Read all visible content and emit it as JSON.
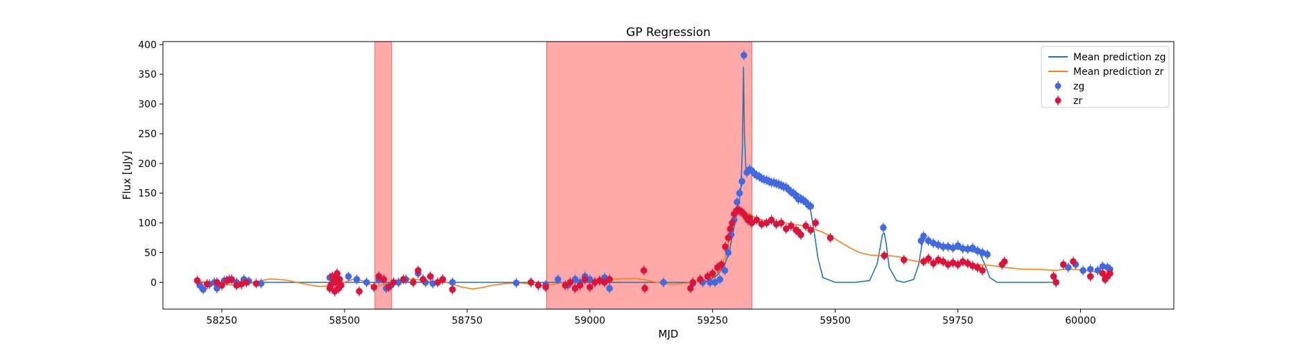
{
  "chart_data": {
    "type": "scatter",
    "title": "GP Regression",
    "xlabel": "MJD",
    "ylabel": "Flux [uJy]",
    "xlim": [
      58130,
      60190
    ],
    "ylim": [
      -45,
      405
    ],
    "xticks": [
      58250,
      58500,
      58750,
      59000,
      59250,
      59500,
      59750,
      60000
    ],
    "yticks": [
      0,
      50,
      100,
      150,
      200,
      250,
      300,
      350,
      400
    ],
    "grid": false,
    "legend_position": "top-right",
    "shaded_regions": [
      {
        "x0": 58562,
        "x1": 58596,
        "color": "#ff9a9a"
      },
      {
        "x0": 58912,
        "x1": 59330,
        "color": "#ff9a9a"
      }
    ],
    "series": [
      {
        "name": "Mean prediction zg",
        "kind": "line",
        "color": "#1f77b4",
        "x": [
          58200,
          58250,
          58300,
          58350,
          58400,
          58470,
          58520,
          58550,
          58600,
          58650,
          58700,
          58750,
          58800,
          58850,
          58900,
          58950,
          59000,
          59050,
          59100,
          59150,
          59200,
          59240,
          59260,
          59275,
          59285,
          59292,
          59298,
          59304,
          59308,
          59311,
          59313,
          59315,
          59318,
          59322,
          59330,
          59340,
          59360,
          59380,
          59400,
          59420,
          59440,
          59450,
          59458,
          59465,
          59475,
          59500,
          59540,
          59570,
          59585,
          59592,
          59596,
          59600,
          59604,
          59610,
          59625,
          59640,
          59660,
          59670,
          59676,
          59680,
          59690,
          59700,
          59720,
          59740,
          59760,
          59780,
          59795,
          59805,
          59815,
          59830,
          59850,
          59900,
          59950
        ],
        "y": [
          0,
          0,
          0,
          0,
          0,
          0,
          0,
          0,
          0,
          0,
          0,
          0,
          0,
          0,
          0,
          0,
          0,
          0,
          0,
          0,
          0,
          2,
          12,
          30,
          55,
          85,
          110,
          135,
          160,
          230,
          362,
          250,
          190,
          186,
          188,
          182,
          175,
          168,
          162,
          152,
          140,
          120,
          80,
          40,
          8,
          0,
          0,
          3,
          30,
          60,
          80,
          83,
          65,
          25,
          3,
          0,
          5,
          30,
          60,
          72,
          68,
          63,
          60,
          57,
          55,
          52,
          48,
          30,
          8,
          0,
          0,
          0,
          0
        ]
      },
      {
        "name": "Mean prediction zr",
        "kind": "line",
        "color": "#ff7f0e",
        "x": [
          58200,
          58225,
          58250,
          58275,
          58300,
          58325,
          58350,
          58380,
          58420,
          58450,
          58480,
          58500,
          58520,
          58540,
          58560,
          58580,
          58610,
          58640,
          58660,
          58680,
          58700,
          58720,
          58740,
          58760,
          58780,
          58800,
          58830,
          58860,
          58880,
          58900,
          58920,
          58940,
          58960,
          58980,
          59000,
          59030,
          59060,
          59090,
          59110,
          59130,
          59150,
          59170,
          59190,
          59210,
          59230,
          59250,
          59265,
          59275,
          59285,
          59292,
          59298,
          59305,
          59312,
          59320,
          59335,
          59350,
          59370,
          59390,
          59410,
          59430,
          59450,
          59470,
          59490,
          59510,
          59530,
          59550,
          59570,
          59590,
          59610,
          59630,
          59650,
          59670,
          59690,
          59710,
          59730,
          59750,
          59770,
          59790,
          59810,
          59830,
          59850,
          59870,
          59890,
          59910,
          59930,
          59950,
          59970,
          59990,
          60010,
          60030,
          60060
        ],
        "y": [
          2,
          0,
          -3,
          -5,
          -3,
          2,
          6,
          4,
          -3,
          -7,
          -5,
          0,
          6,
          2,
          -7,
          -4,
          4,
          6,
          3,
          0,
          2,
          -3,
          -8,
          -11,
          -9,
          -5,
          -2,
          -1,
          -3,
          -6,
          -4,
          -1,
          0,
          1,
          2,
          4,
          6,
          7,
          5,
          1,
          -2,
          -3,
          -2,
          0,
          3,
          8,
          20,
          40,
          70,
          95,
          112,
          118,
          120,
          117,
          110,
          105,
          103,
          101,
          99,
          96,
          92,
          86,
          78,
          68,
          58,
          50,
          46,
          45,
          45,
          43,
          38,
          35,
          33,
          32,
          31,
          31,
          30,
          30,
          29,
          27,
          25,
          23,
          22,
          22,
          21,
          20,
          22,
          22,
          20,
          18,
          18
        ]
      },
      {
        "name": "zg",
        "kind": "errorbar",
        "color": "#4169e1",
        "x": [
          58205,
          58212,
          58225,
          58235,
          58240,
          58255,
          58265,
          58280,
          58295,
          58305,
          58330,
          58470,
          58480,
          58490,
          58508,
          58525,
          58545,
          58570,
          58585,
          58595,
          58610,
          58625,
          58650,
          58665,
          58680,
          58700,
          58720,
          58850,
          58880,
          58910,
          58935,
          58955,
          58970,
          58980,
          58990,
          59000,
          59010,
          59020,
          59030,
          59040,
          59150,
          59210,
          59230,
          59245,
          59255,
          59265,
          59275,
          59282,
          59288,
          59294,
          59300,
          59305,
          59310,
          59314,
          59320,
          59325,
          59330,
          59335,
          59340,
          59345,
          59350,
          59355,
          59360,
          59365,
          59370,
          59375,
          59380,
          59385,
          59390,
          59395,
          59400,
          59405,
          59410,
          59415,
          59420,
          59425,
          59430,
          59435,
          59440,
          59445,
          59450,
          59598,
          59675,
          59680,
          59690,
          59700,
          59710,
          59720,
          59730,
          59740,
          59750,
          59760,
          59770,
          59780,
          59790,
          59800,
          59810,
          59975,
          59990,
          60005,
          60020,
          60035,
          60045,
          60055,
          60060
        ],
        "y": [
          -5,
          -12,
          -3,
          0,
          -10,
          3,
          5,
          0,
          5,
          2,
          -2,
          8,
          10,
          5,
          10,
          5,
          0,
          5,
          -10,
          -5,
          0,
          5,
          15,
          0,
          -2,
          5,
          0,
          -1,
          0,
          -4,
          5,
          -5,
          5,
          0,
          10,
          5,
          0,
          3,
          8,
          -10,
          0,
          -2,
          0,
          0,
          0,
          5,
          20,
          50,
          80,
          105,
          135,
          150,
          170,
          382,
          185,
          190,
          188,
          183,
          180,
          178,
          175,
          173,
          172,
          170,
          168,
          168,
          166,
          165,
          163,
          161,
          160,
          156,
          152,
          150,
          145,
          140,
          140,
          138,
          135,
          130,
          128,
          92,
          70,
          78,
          70,
          66,
          63,
          60,
          60,
          58,
          62,
          57,
          56,
          58,
          53,
          50,
          47,
          25,
          30,
          20,
          22,
          20,
          27,
          25,
          22
        ]
      },
      {
        "name": "zr",
        "kind": "errorbar",
        "color": "#dc143c",
        "x": [
          58200,
          58220,
          58240,
          58250,
          58260,
          58270,
          58280,
          58290,
          58300,
          58320,
          58470,
          58472,
          58475,
          58478,
          58480,
          58482,
          58485,
          58488,
          58490,
          58493,
          58530,
          58560,
          58570,
          58580,
          58590,
          58600,
          58620,
          58640,
          58650,
          58660,
          58675,
          58690,
          58700,
          58720,
          58880,
          58895,
          58910,
          58950,
          58960,
          58970,
          58980,
          58990,
          59000,
          59010,
          59020,
          59030,
          59040,
          59110,
          59112,
          59205,
          59210,
          59225,
          59240,
          59250,
          59260,
          59268,
          59276,
          59282,
          59286,
          59290,
          59294,
          59298,
          59302,
          59306,
          59310,
          59314,
          59318,
          59322,
          59326,
          59330,
          59340,
          59350,
          59360,
          59370,
          59380,
          59390,
          59400,
          59410,
          59420,
          59425,
          59430,
          59440,
          59450,
          59460,
          59490,
          59600,
          59640,
          59680,
          59690,
          59700,
          59710,
          59720,
          59730,
          59740,
          59750,
          59760,
          59770,
          59780,
          59790,
          59800,
          59840,
          59845,
          59945,
          59950,
          59965,
          59985,
          60020,
          60045,
          60050,
          60055,
          60060
        ],
        "y": [
          3,
          -3,
          0,
          -5,
          3,
          5,
          -5,
          -3,
          0,
          -2,
          -10,
          -5,
          10,
          5,
          -15,
          0,
          15,
          -10,
          5,
          -5,
          -15,
          -8,
          10,
          5,
          -8,
          0,
          5,
          0,
          20,
          5,
          10,
          0,
          5,
          -12,
          0,
          -5,
          -8,
          -5,
          0,
          -10,
          -5,
          5,
          -8,
          0,
          3,
          0,
          5,
          20,
          -10,
          -10,
          0,
          5,
          10,
          15,
          25,
          30,
          60,
          75,
          90,
          100,
          115,
          120,
          122,
          120,
          118,
          115,
          110,
          105,
          108,
          100,
          105,
          98,
          100,
          105,
          98,
          100,
          90,
          95,
          88,
          85,
          80,
          95,
          88,
          100,
          75,
          45,
          38,
          35,
          40,
          32,
          38,
          35,
          30,
          33,
          30,
          35,
          32,
          28,
          25,
          20,
          30,
          35,
          10,
          0,
          30,
          35,
          10,
          15,
          5,
          10,
          15
        ]
      }
    ]
  }
}
